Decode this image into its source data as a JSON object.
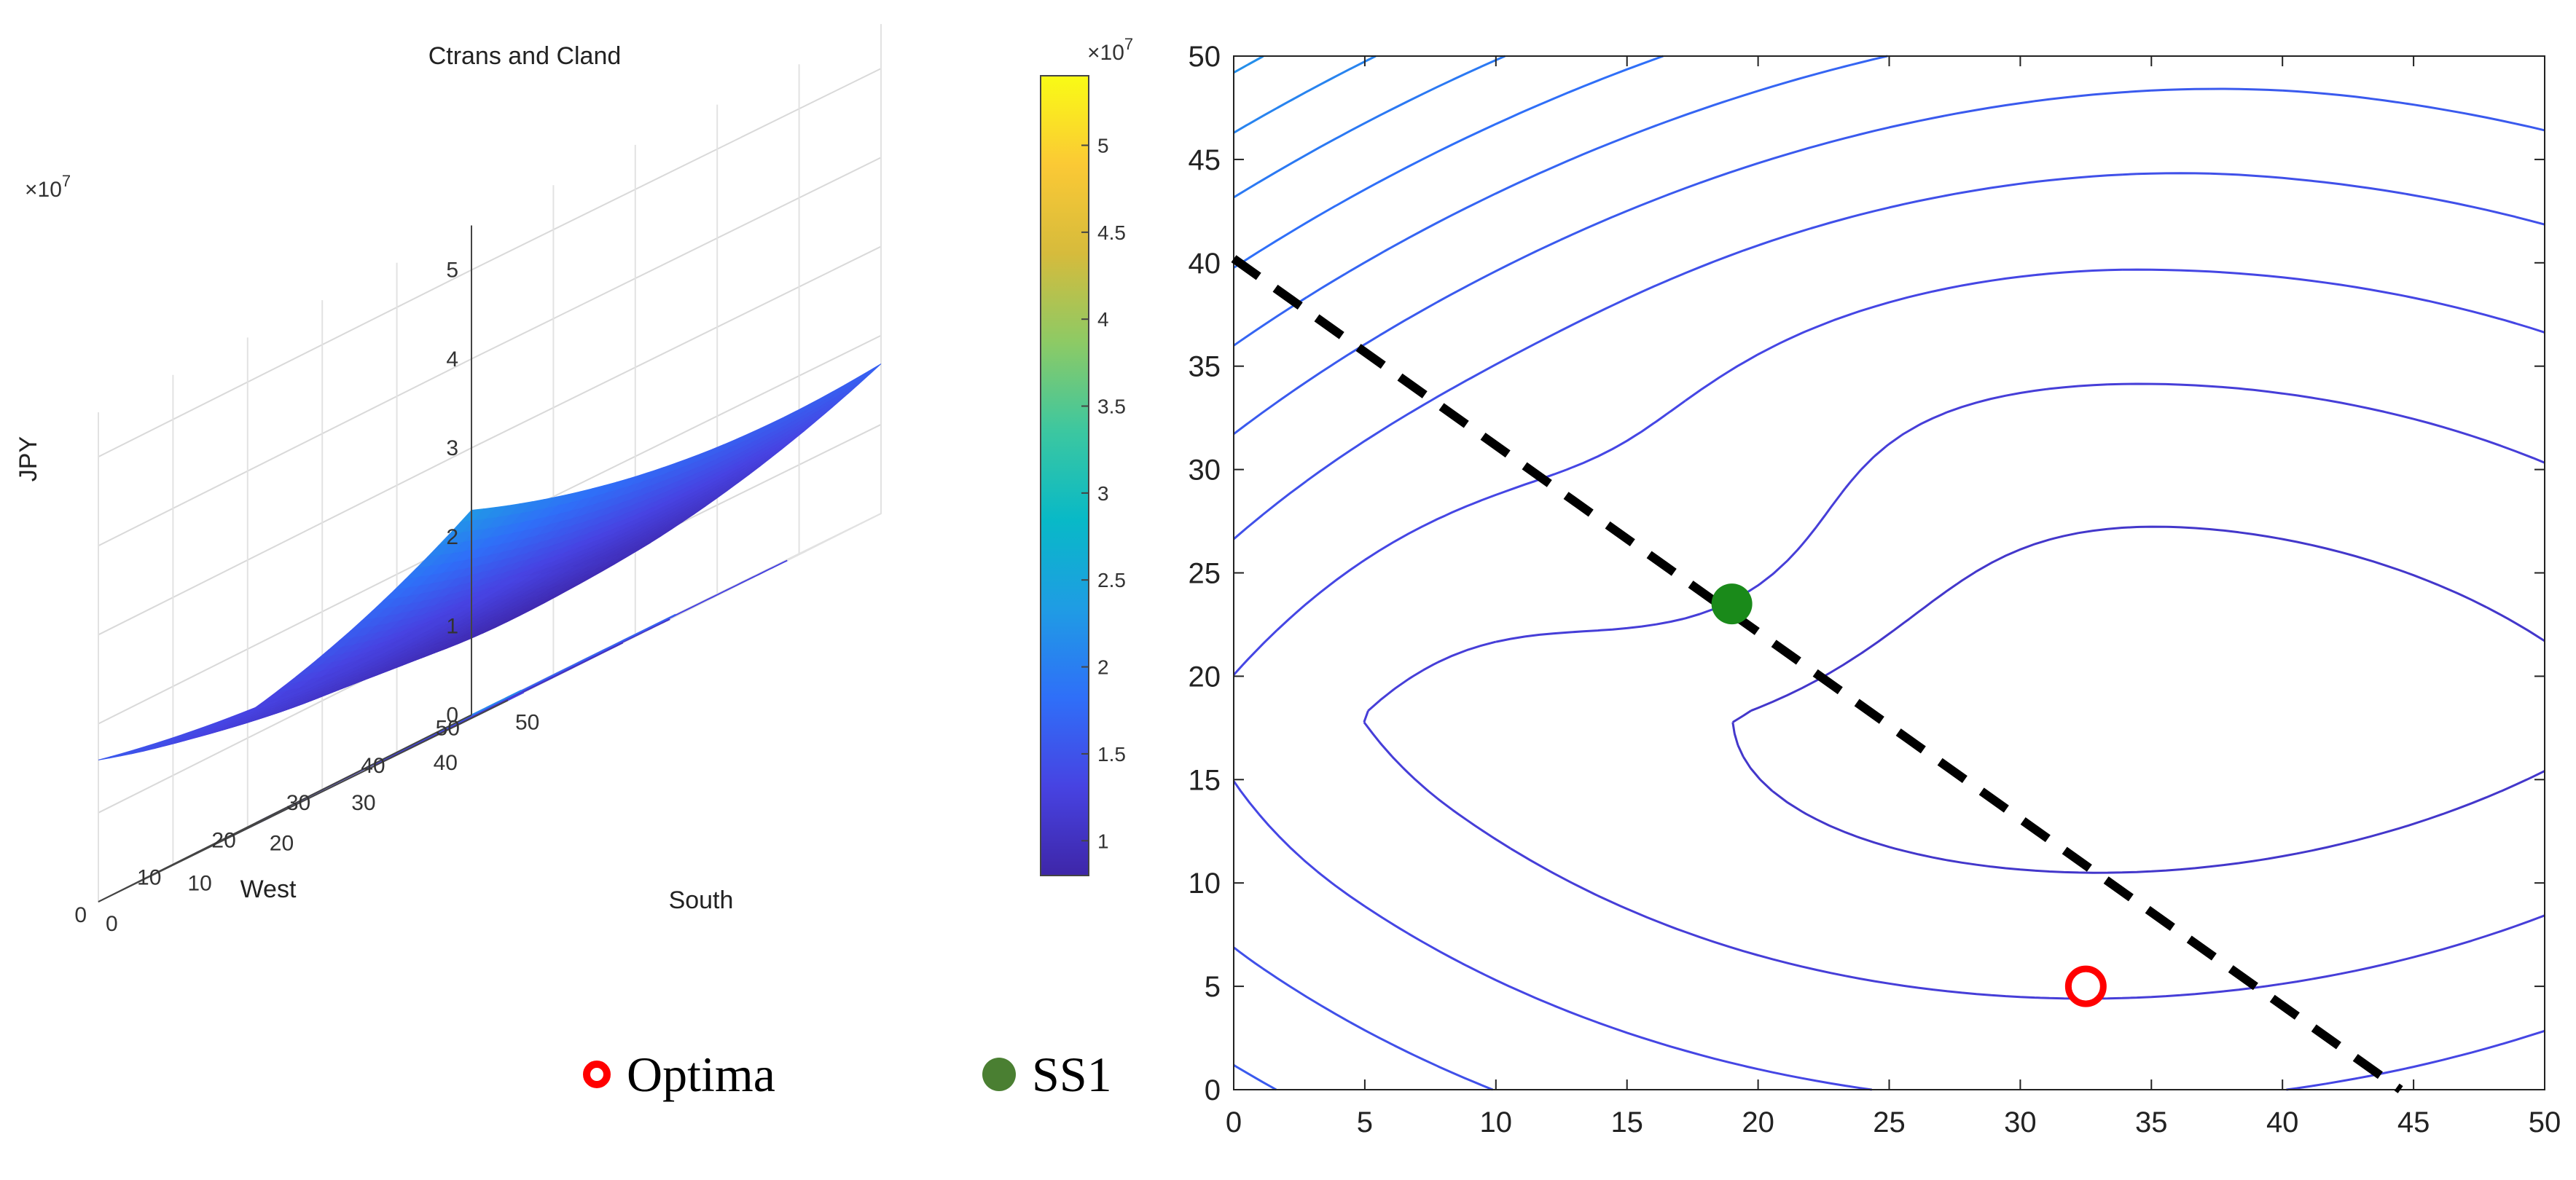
{
  "colors": {
    "colormap": [
      "#3e26a8",
      "#4743e2",
      "#2f6ff8",
      "#1f9ce4",
      "#08b9c7",
      "#3cc7a0",
      "#8dca65",
      "#d6bb3c",
      "#fbc935",
      "#f9fb15"
    ],
    "optima_marker": "#ff0000",
    "ss1_marker": "#1a8a1a",
    "ss1_legend": "#4a7f32",
    "divide_line": "#000000"
  },
  "legend": {
    "optima": "Optima",
    "ss1": "SS1"
  },
  "chart_data": [
    {
      "type": "surface",
      "title": "Ctrans and Cland",
      "xlabel": "South",
      "ylabel": "West",
      "zlabel": "JPY",
      "z_exponent_label": "×10",
      "z_exponent_power": "7",
      "xlim": [
        0,
        50
      ],
      "ylim": [
        0,
        50
      ],
      "zlim": [
        0,
        55000000
      ],
      "x_ticks": [
        "0",
        "10",
        "20",
        "30",
        "40",
        "50"
      ],
      "y_ticks": [
        "0",
        "10",
        "20",
        "30",
        "40",
        "50"
      ],
      "z_ticks": [
        "0",
        "1",
        "2",
        "3",
        "4",
        "5"
      ],
      "z_range": [
        8000000,
        54000000
      ],
      "minimum": {
        "x": 32.5,
        "y": 5,
        "z": 8000000
      },
      "corner_values": [
        {
          "x": 0,
          "y": 50,
          "z": 54000000
        },
        {
          "x": 50,
          "y": 50,
          "z": 34000000
        },
        {
          "x": 50,
          "y": 0,
          "z": 18000000
        },
        {
          "x": 0,
          "y": 0,
          "z": 22000000
        }
      ],
      "colorbar": {
        "exponent_label": "×10",
        "exponent_power": "7",
        "ticks": [
          "1",
          "1.5",
          "2",
          "2.5",
          "3",
          "3.5",
          "4",
          "4.5",
          "5"
        ],
        "range": [
          8000000,
          54000000
        ]
      }
    },
    {
      "type": "contour",
      "xlim": [
        0,
        50
      ],
      "ylim": [
        0,
        50
      ],
      "x_ticks": [
        "0",
        "5",
        "10",
        "15",
        "20",
        "25",
        "30",
        "35",
        "40",
        "45",
        "50"
      ],
      "y_ticks": [
        "0",
        "5",
        "10",
        "15",
        "20",
        "25",
        "30",
        "35",
        "40",
        "45",
        "50"
      ],
      "points": [
        {
          "name": "Optima",
          "x": 32.5,
          "y": 5
        },
        {
          "name": "SS1",
          "x": 19,
          "y": 23.5
        }
      ],
      "dashed_line": {
        "x": [
          0,
          44.5
        ],
        "y": [
          40.2,
          0
        ]
      }
    }
  ]
}
